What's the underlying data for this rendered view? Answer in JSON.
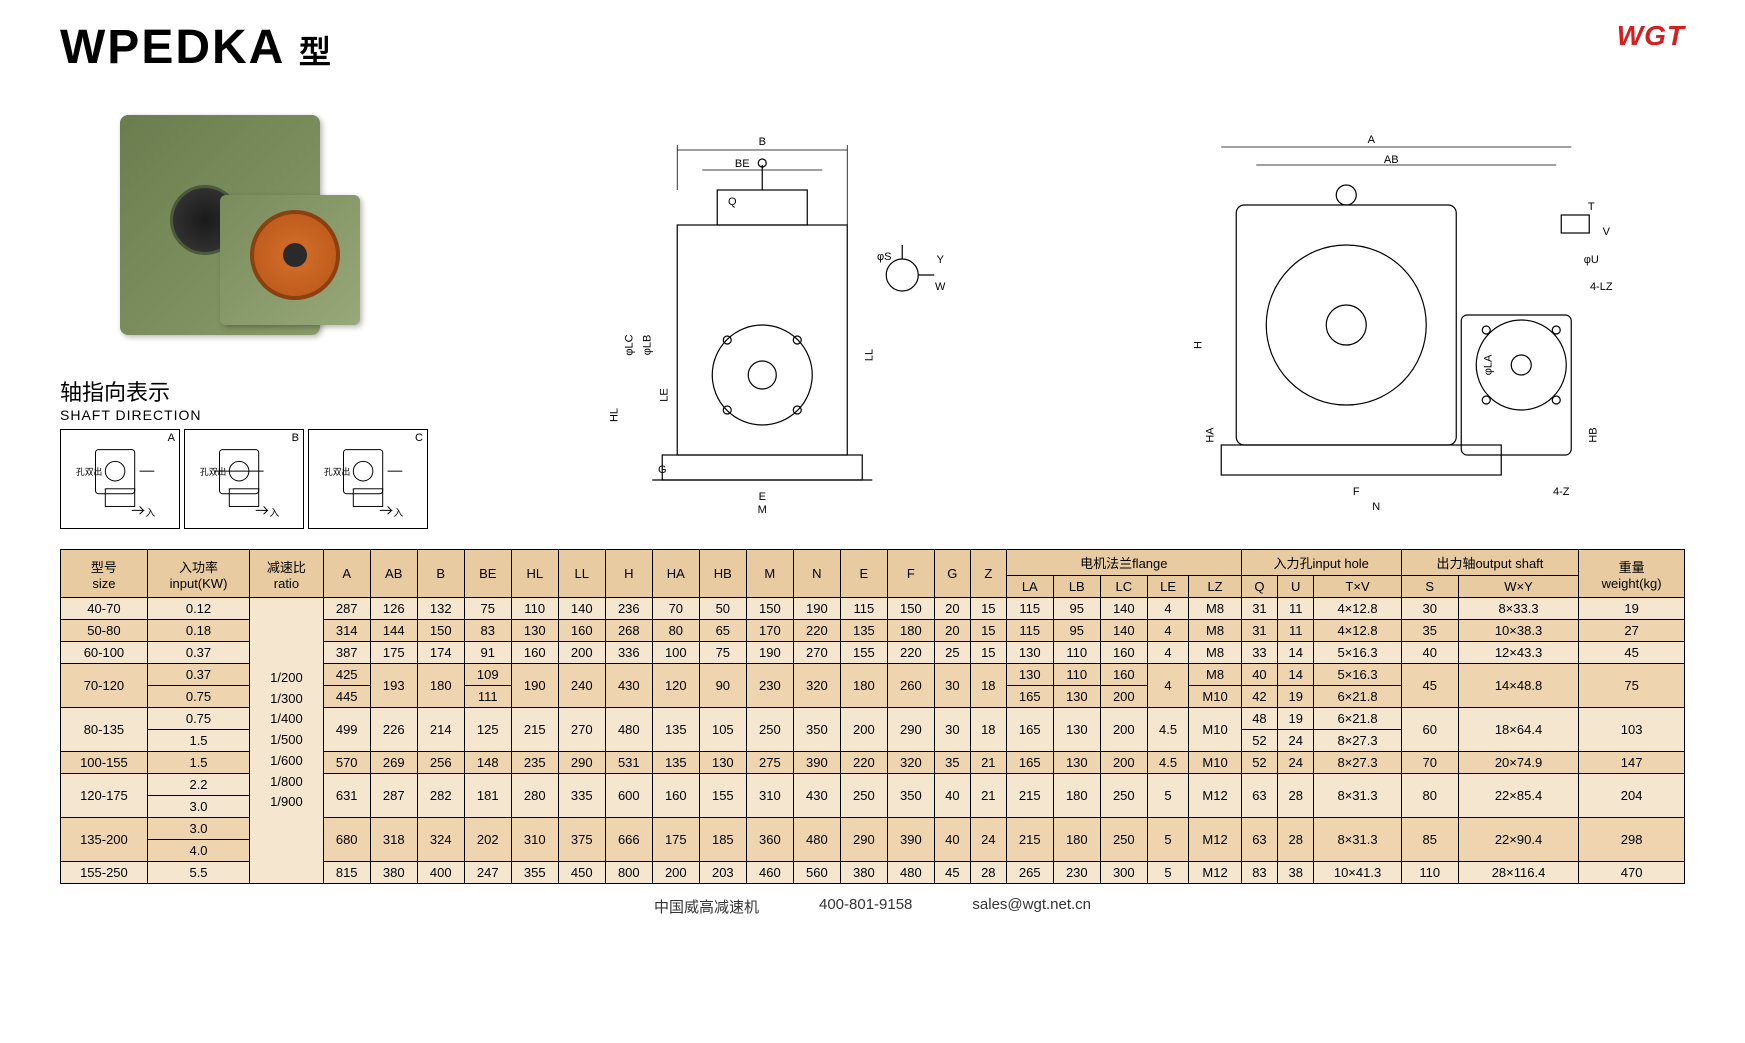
{
  "logo": "WGT",
  "title_main": "WPEDKA",
  "title_suffix": "型",
  "shaft_title": "轴指向表示",
  "shaft_sub": "SHAFT DIRECTION",
  "shaft_labels": [
    "A",
    "B",
    "C"
  ],
  "shaft_in": "入",
  "shaft_out": "孔双出",
  "diagram_labels": {
    "front": [
      "BE",
      "B",
      "Q",
      "φS",
      "Y",
      "W",
      "φLC",
      "φLB",
      "HL",
      "LE",
      "LL",
      "G",
      "E",
      "M"
    ],
    "side": [
      "A",
      "AB",
      "T",
      "V",
      "φU",
      "4-LZ",
      "H",
      "φLA",
      "HA",
      "HB",
      "F",
      "N",
      "4-Z"
    ]
  },
  "table": {
    "header_groups": {
      "size": {
        "cn": "型号",
        "en": "size"
      },
      "input": {
        "cn": "入功率",
        "en": "input(KW)"
      },
      "ratio": {
        "cn": "减速比",
        "en": "ratio"
      },
      "flange": {
        "cn": "电机法兰flange",
        "sub": [
          "LA",
          "LB",
          "LC",
          "LE",
          "LZ"
        ]
      },
      "inhole": {
        "cn": "入力孔input hole",
        "sub": [
          "Q",
          "U",
          "T×V"
        ]
      },
      "outshaft": {
        "cn": "出力轴output shaft",
        "sub": [
          "S",
          "W×Y"
        ]
      },
      "weight": {
        "cn": "重量",
        "en": "weight(kg)"
      }
    },
    "dim_cols": [
      "A",
      "AB",
      "B",
      "BE",
      "HL",
      "LL",
      "H",
      "HA",
      "HB",
      "M",
      "N",
      "E",
      "F",
      "G",
      "Z"
    ],
    "ratio_values": [
      "1/200",
      "1/300",
      "1/400",
      "1/500",
      "1/600",
      "1/800",
      "1/900"
    ],
    "rows": [
      {
        "size": "40-70",
        "input": [
          "0.12"
        ],
        "A": "287",
        "AB": "126",
        "B": "132",
        "BE": "75",
        "HL": "110",
        "LL": "140",
        "H": "236",
        "HA": "70",
        "HB": "50",
        "M": "150",
        "N": "190",
        "E": "115",
        "F": "150",
        "G": "20",
        "Z": "15",
        "LA": "115",
        "LB": "95",
        "LC": "140",
        "LE": "4",
        "LZ": "M8",
        "Q": "31",
        "U": "11",
        "TV": "4×12.8",
        "S": "30",
        "WY": "8×33.3",
        "wt": "19"
      },
      {
        "size": "50-80",
        "input": [
          "0.18"
        ],
        "A": "314",
        "AB": "144",
        "B": "150",
        "BE": "83",
        "HL": "130",
        "LL": "160",
        "H": "268",
        "HA": "80",
        "HB": "65",
        "M": "170",
        "N": "220",
        "E": "135",
        "F": "180",
        "G": "20",
        "Z": "15",
        "LA": "115",
        "LB": "95",
        "LC": "140",
        "LE": "4",
        "LZ": "M8",
        "Q": "31",
        "U": "11",
        "TV": "4×12.8",
        "S": "35",
        "WY": "10×38.3",
        "wt": "27"
      },
      {
        "size": "60-100",
        "input": [
          "0.37"
        ],
        "A": "387",
        "AB": "175",
        "B": "174",
        "BE": "91",
        "HL": "160",
        "LL": "200",
        "H": "336",
        "HA": "100",
        "HB": "75",
        "M": "190",
        "N": "270",
        "E": "155",
        "F": "220",
        "G": "25",
        "Z": "15",
        "LA": "130",
        "LB": "110",
        "LC": "160",
        "LE": "4",
        "LZ": "M8",
        "Q": "33",
        "U": "14",
        "TV": "5×16.3",
        "S": "40",
        "WY": "12×43.3",
        "wt": "45"
      },
      {
        "size": "70-120",
        "input": [
          "0.37",
          "0.75"
        ],
        "A": [
          "425",
          "445"
        ],
        "AB": "193",
        "B": "180",
        "BE": [
          "109",
          "111"
        ],
        "HL": "190",
        "LL": "240",
        "H": "430",
        "HA": "120",
        "HB": "90",
        "M": "230",
        "N": "320",
        "E": "180",
        "F": "260",
        "G": "30",
        "Z": "18",
        "LA": [
          "130",
          "165"
        ],
        "LB": [
          "110",
          "130"
        ],
        "LC": [
          "160",
          "200"
        ],
        "LE": "4",
        "LZ": [
          "M8",
          "M10"
        ],
        "Q": [
          "40",
          "42"
        ],
        "U": [
          "14",
          "19"
        ],
        "TV": [
          "5×16.3",
          "6×21.8"
        ],
        "S": "45",
        "WY": "14×48.8",
        "wt": "75"
      },
      {
        "size": "80-135",
        "input": [
          "0.75",
          "1.5"
        ],
        "A": "499",
        "AB": "226",
        "B": "214",
        "BE": "125",
        "HL": "215",
        "LL": "270",
        "H": "480",
        "HA": "135",
        "HB": "105",
        "M": "250",
        "N": "350",
        "E": "200",
        "F": "290",
        "G": "30",
        "Z": "18",
        "LA": "165",
        "LB": "130",
        "LC": "200",
        "LE": "4.5",
        "LZ": "M10",
        "Q": [
          "48",
          "52"
        ],
        "U": [
          "19",
          "24"
        ],
        "TV": [
          "6×21.8",
          "8×27.3"
        ],
        "S": "60",
        "WY": "18×64.4",
        "wt": "103"
      },
      {
        "size": "100-155",
        "input": [
          "1.5"
        ],
        "A": "570",
        "AB": "269",
        "B": "256",
        "BE": "148",
        "HL": "235",
        "LL": "290",
        "H": "531",
        "HA": "135",
        "HB": "130",
        "M": "275",
        "N": "390",
        "E": "220",
        "F": "320",
        "G": "35",
        "Z": "21",
        "LA": "165",
        "LB": "130",
        "LC": "200",
        "LE": "4.5",
        "LZ": "M10",
        "Q": "52",
        "U": "24",
        "TV": "8×27.3",
        "S": "70",
        "WY": "20×74.9",
        "wt": "147"
      },
      {
        "size": "120-175",
        "input": [
          "2.2",
          "3.0"
        ],
        "A": "631",
        "AB": "287",
        "B": "282",
        "BE": "181",
        "HL": "280",
        "LL": "335",
        "H": "600",
        "HA": "160",
        "HB": "155",
        "M": "310",
        "N": "430",
        "E": "250",
        "F": "350",
        "G": "40",
        "Z": "21",
        "LA": "215",
        "LB": "180",
        "LC": "250",
        "LE": "5",
        "LZ": "M12",
        "Q": "63",
        "U": "28",
        "TV": "8×31.3",
        "S": "80",
        "WY": "22×85.4",
        "wt": "204"
      },
      {
        "size": "135-200",
        "input": [
          "3.0",
          "4.0"
        ],
        "A": "680",
        "AB": "318",
        "B": "324",
        "BE": "202",
        "HL": "310",
        "LL": "375",
        "H": "666",
        "HA": "175",
        "HB": "185",
        "M": "360",
        "N": "480",
        "E": "290",
        "F": "390",
        "G": "40",
        "Z": "24",
        "LA": "215",
        "LB": "180",
        "LC": "250",
        "LE": "5",
        "LZ": "M12",
        "Q": "63",
        "U": "28",
        "TV": "8×31.3",
        "S": "85",
        "WY": "22×90.4",
        "wt": "298"
      },
      {
        "size": "155-250",
        "input": [
          "5.5"
        ],
        "A": "815",
        "AB": "380",
        "B": "400",
        "BE": "247",
        "HL": "355",
        "LL": "450",
        "H": "800",
        "HA": "200",
        "HB": "203",
        "M": "460",
        "N": "560",
        "E": "380",
        "F": "480",
        "G": "45",
        "Z": "28",
        "LA": "265",
        "LB": "230",
        "LC": "300",
        "LE": "5",
        "LZ": "M12",
        "Q": "83",
        "U": "38",
        "TV": "10×41.3",
        "S": "110",
        "WY": "28×116.4",
        "wt": "470"
      }
    ]
  },
  "footer": {
    "company": "中国威高减速机",
    "phone": "400-801-9158",
    "email": "sales@wgt.net.cn"
  },
  "colors": {
    "table_bg1": "#f5e6d0",
    "table_bg2": "#eed5b0",
    "table_header": "#e8cba0",
    "logo": "#d32020",
    "gearbox_body": "#7a8c5c",
    "gearbox_flange": "#c8601f"
  }
}
